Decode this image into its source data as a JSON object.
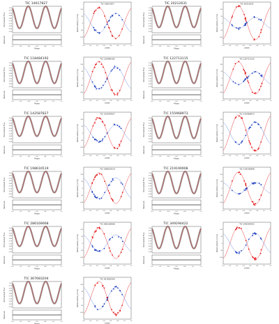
{
  "labels": {
    "lc_ylabel": "Normalized Flux",
    "res_ylabel": "Residuals",
    "lc_xlabel": "Phase",
    "rv_ylabel": "Radial velocity (km/s)",
    "rv_xlabel": "phase"
  },
  "colors": {
    "model": "#d9534f",
    "lc_data": "#7a7a7a",
    "primary_rv": "#e41a1c",
    "secondary_rv": "#1f3fbf",
    "secondary_model": "#5b7be0"
  },
  "lc_x_ticks": [
    "0.0",
    "0.2",
    "0.4",
    "0.6",
    "0.8",
    "1.0",
    "1.2"
  ],
  "rv_x_ticks": [
    "-0.2",
    "0.0",
    "0.2",
    "0.4",
    "0.6",
    "0.8",
    "1.0",
    "1.2"
  ],
  "chart_data": [
    {
      "type": "scatter",
      "title": "TIC 14617827",
      "kind": "light_curve",
      "xlim": [
        -0.2,
        1.2
      ],
      "ylim": [
        0.4,
        1.0
      ],
      "min_flux": 0.5
    },
    {
      "type": "scatter",
      "title": "TIC 14617827",
      "kind": "radial_velocity",
      "xlim": [
        -0.2,
        1.2
      ],
      "ylim": [
        -150,
        150
      ],
      "k1": 110,
      "k2": 70,
      "y_ticks": [
        "100",
        "50",
        "0",
        "-50",
        "-100"
      ]
    },
    {
      "type": "scatter",
      "title": "TIC 20212631",
      "kind": "light_curve",
      "xlim": [
        -0.2,
        1.2
      ],
      "ylim": [
        0.4,
        1.0
      ],
      "min_flux": 0.52
    },
    {
      "type": "scatter",
      "title": "TIC 20212631",
      "kind": "radial_velocity",
      "xlim": [
        -0.2,
        1.2
      ],
      "ylim": [
        -150,
        150
      ],
      "k1": 120,
      "k2": 40,
      "y_ticks": [
        "100",
        "50",
        "0",
        "-50",
        "-100"
      ]
    },
    {
      "type": "scatter",
      "title": "TIC 118484192",
      "kind": "light_curve",
      "xlim": [
        -0.2,
        1.2
      ],
      "ylim": [
        0.4,
        1.0
      ],
      "min_flux": 0.5
    },
    {
      "type": "scatter",
      "title": "TIC 118484192",
      "kind": "radial_velocity",
      "xlim": [
        -0.2,
        1.2
      ],
      "ylim": [
        -150,
        150
      ],
      "k1": 120,
      "k2": 80,
      "y_ticks": [
        "100",
        "50",
        "0",
        "-50",
        "-100"
      ]
    },
    {
      "type": "scatter",
      "title": "TIC 122713115",
      "kind": "light_curve",
      "xlim": [
        -0.2,
        1.2
      ],
      "ylim": [
        0.4,
        1.0
      ],
      "min_flux": 0.5
    },
    {
      "type": "scatter",
      "title": "TIC 122713115",
      "kind": "radial_velocity",
      "xlim": [
        -0.2,
        1.2
      ],
      "ylim": [
        -150,
        150
      ],
      "k1": 115,
      "k2": 45,
      "y_ticks": [
        "100",
        "50",
        "0",
        "-50",
        "-100"
      ]
    },
    {
      "type": "scatter",
      "title": "TIC 142587827",
      "kind": "light_curve",
      "xlim": [
        -0.2,
        1.2
      ],
      "ylim": [
        0.4,
        1.0
      ],
      "min_flux": 0.55
    },
    {
      "type": "scatter",
      "title": "TIC 142587827",
      "kind": "radial_velocity",
      "xlim": [
        -0.2,
        1.2
      ],
      "ylim": [
        -150,
        150
      ],
      "k1": 110,
      "k2": 60,
      "y_ticks": [
        "100",
        "50",
        "0",
        "-50",
        "-100"
      ]
    },
    {
      "type": "scatter",
      "title": "TIC 155968973",
      "kind": "light_curve",
      "xlim": [
        -0.2,
        1.2
      ],
      "ylim": [
        0.4,
        1.0
      ],
      "min_flux": 0.5
    },
    {
      "type": "scatter",
      "title": "TIC 155968973",
      "kind": "radial_velocity",
      "xlim": [
        -0.2,
        1.2
      ],
      "ylim": [
        -150,
        150
      ],
      "k1": 130,
      "k2": 80,
      "y_ticks": [
        "100",
        "50",
        "0",
        "-50",
        "-100"
      ]
    },
    {
      "type": "scatter",
      "title": "TIC 198616519",
      "kind": "light_curve",
      "xlim": [
        -0.2,
        1.2
      ],
      "ylim": [
        0.4,
        1.0
      ],
      "min_flux": 0.52
    },
    {
      "type": "scatter",
      "title": "TIC 198616519",
      "kind": "radial_velocity",
      "xlim": [
        -0.2,
        1.2
      ],
      "ylim": [
        -150,
        150
      ],
      "k1": 110,
      "k2": 75,
      "y_ticks": [
        "100",
        "50",
        "0",
        "-50",
        "-100"
      ]
    },
    {
      "type": "scatter",
      "title": "TIC 219190908",
      "kind": "light_curve",
      "xlim": [
        -0.2,
        1.2
      ],
      "ylim": [
        0.4,
        1.0
      ],
      "min_flux": 0.5
    },
    {
      "type": "scatter",
      "title": "TIC 219190908",
      "kind": "radial_velocity",
      "xlim": [
        -0.2,
        1.2
      ],
      "ylim": [
        -150,
        150
      ],
      "k1": 115,
      "k2": 40,
      "y_ticks": [
        "100",
        "50",
        "0",
        "-50",
        "-100"
      ]
    },
    {
      "type": "scatter",
      "title": "TIC 286169068",
      "kind": "light_curve",
      "xlim": [
        -0.2,
        1.2
      ],
      "ylim": [
        0.4,
        1.0
      ],
      "min_flux": 0.55
    },
    {
      "type": "scatter",
      "title": "TIC 286169068",
      "kind": "radial_velocity",
      "xlim": [
        -0.2,
        1.2
      ],
      "ylim": [
        -150,
        150
      ],
      "k1": 110,
      "k2": 60,
      "y_ticks": [
        "100",
        "50",
        "0",
        "-50",
        "-100"
      ]
    },
    {
      "type": "scatter",
      "title": "TIC 349294422",
      "kind": "light_curve",
      "xlim": [
        -0.2,
        1.2
      ],
      "ylim": [
        0.4,
        1.0
      ],
      "min_flux": 0.5
    },
    {
      "type": "scatter",
      "title": "TIC 349294422",
      "kind": "radial_velocity",
      "xlim": [
        -0.2,
        1.2
      ],
      "ylim": [
        -150,
        150
      ],
      "k1": 115,
      "k2": 70,
      "y_ticks": [
        "100",
        "50",
        "0",
        "-50",
        "-100"
      ]
    },
    {
      "type": "scatter",
      "title": "TIC 367683204",
      "kind": "light_curve",
      "xlim": [
        -0.2,
        1.2
      ],
      "ylim": [
        0.4,
        1.0
      ],
      "min_flux": 0.5
    },
    {
      "type": "scatter",
      "title": "TIC 367683204",
      "kind": "radial_velocity",
      "xlim": [
        -0.2,
        1.2
      ],
      "ylim": [
        -150,
        150
      ],
      "k1": 120,
      "k2": 80,
      "y_ticks": [
        "100",
        "50",
        "0",
        "-50",
        "-100"
      ]
    }
  ]
}
